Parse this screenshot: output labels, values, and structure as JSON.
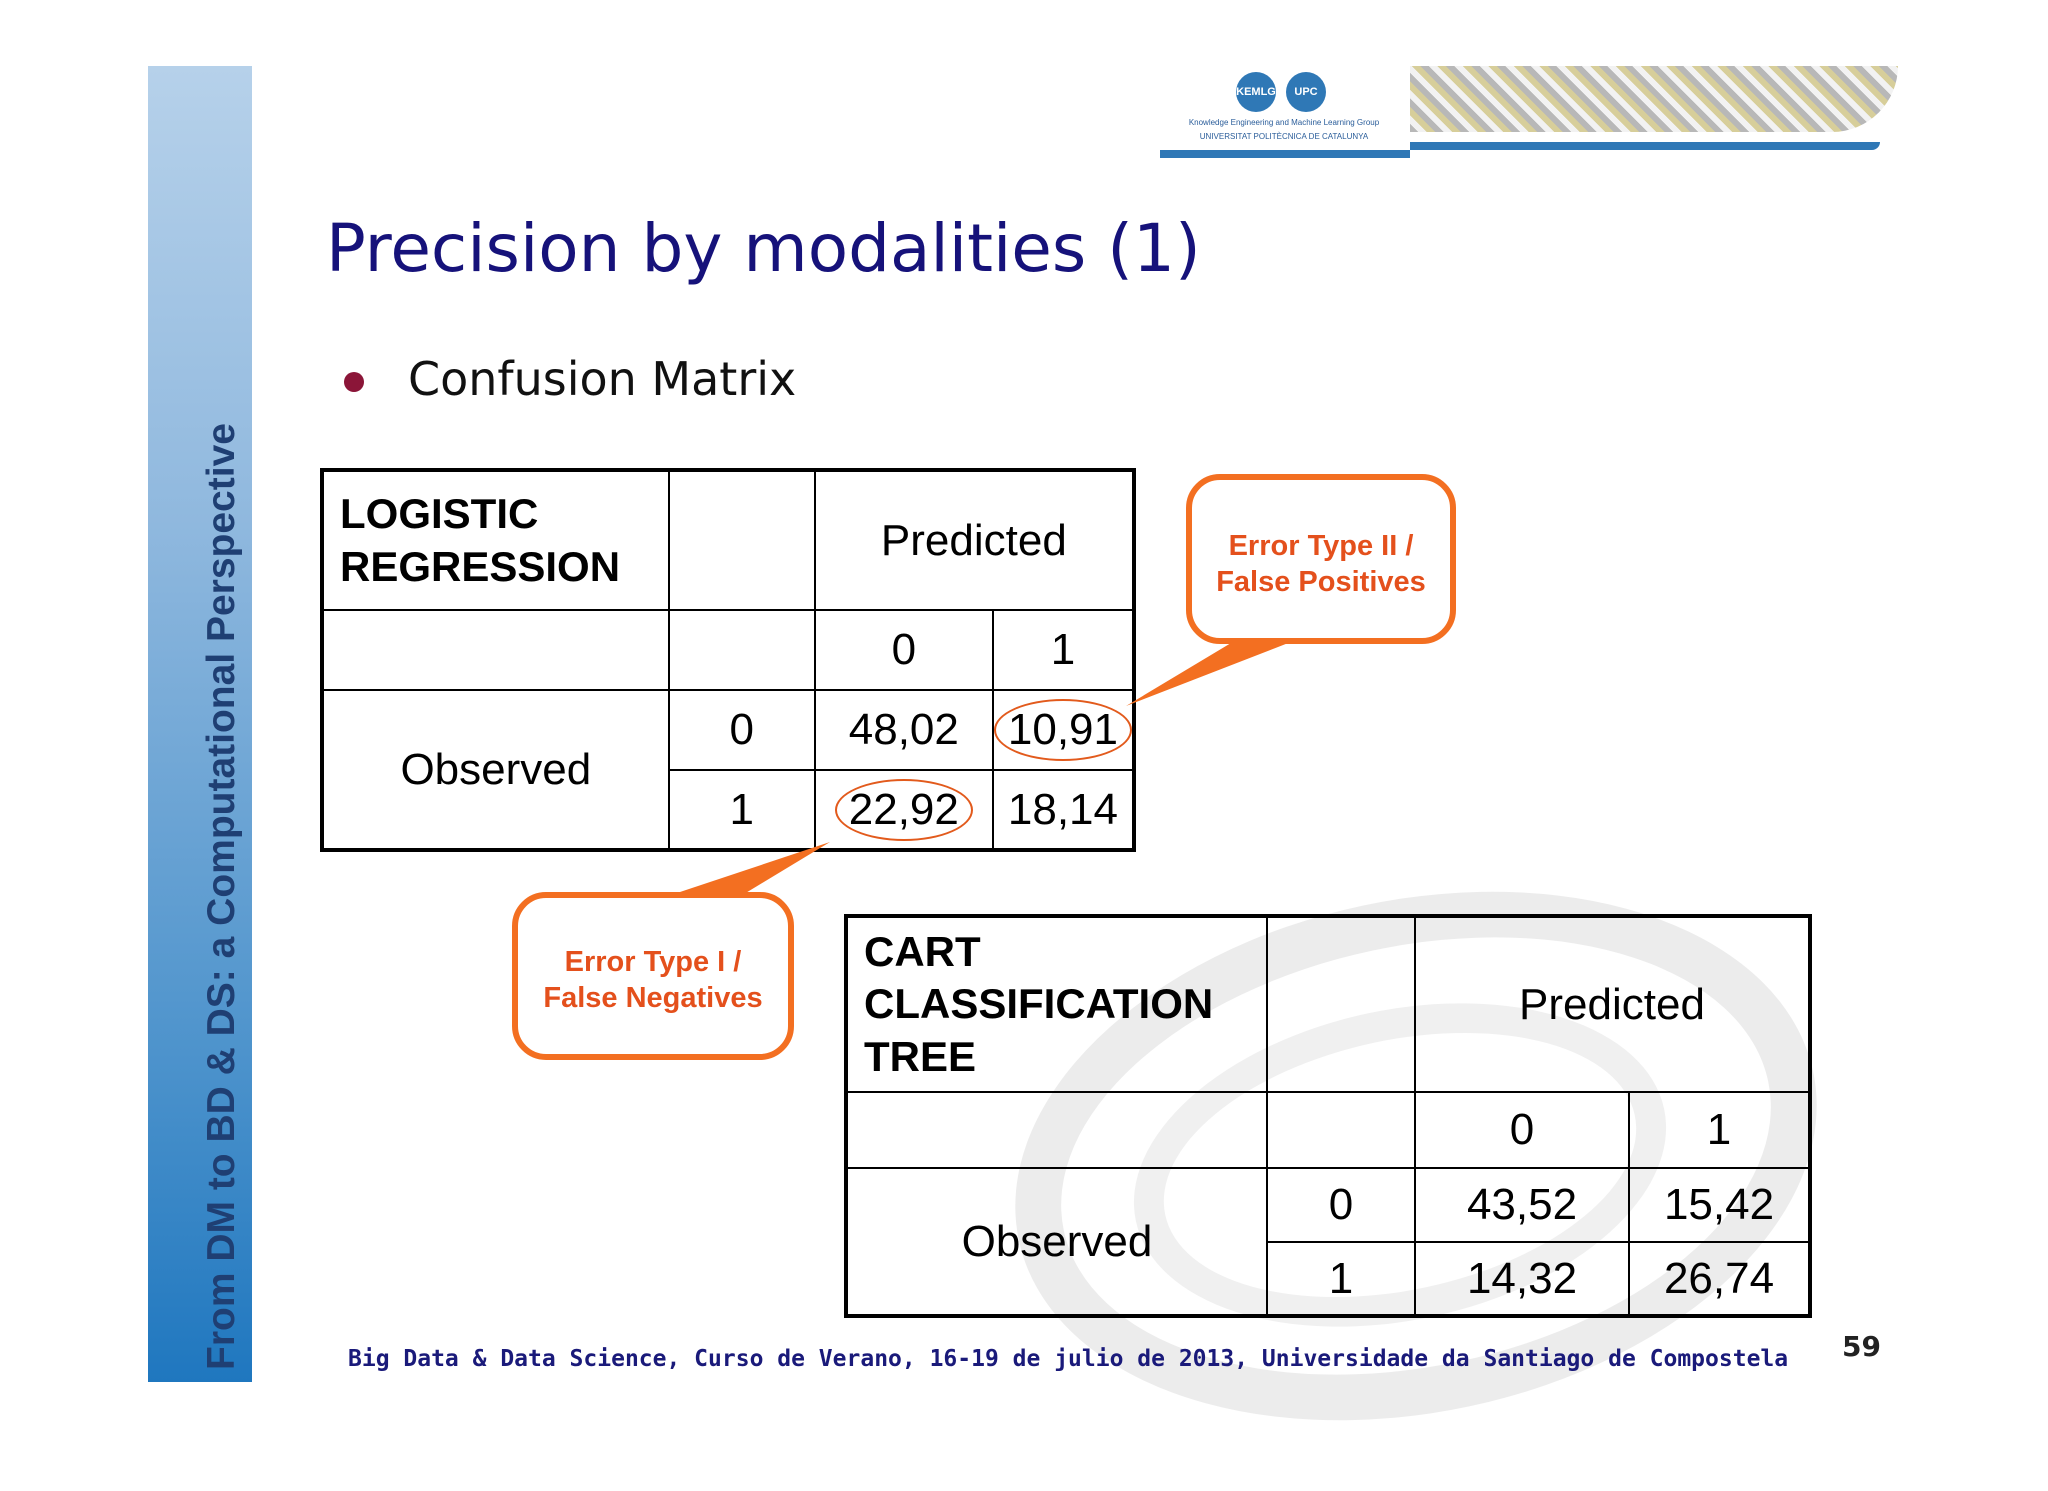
{
  "sidebar": {
    "text": "From DM to BD & DS: a Computational Perspective"
  },
  "logo": {
    "left_mark": "KEMLG",
    "right_mark": "UPC",
    "line1": "Knowledge Engineering and Machine Learning Group",
    "line2": "UNIVERSITAT POLITÈCNICA DE CATALUNYA"
  },
  "title": "Precision by modalities (1)",
  "bullet": "Confusion Matrix",
  "logistic": {
    "title_line1": "LOGISTIC",
    "title_line2": "REGRESSION",
    "predicted": "Predicted",
    "col0": "0",
    "col1": "1",
    "observed": "Observed",
    "row0": "0",
    "row1": "1",
    "cells": [
      [
        "48,02",
        "10,91"
      ],
      [
        "22,92",
        "18,14"
      ]
    ]
  },
  "cart": {
    "title_line1": "CART",
    "title_line2": "CLASSIFICATION",
    "title_line3": "TREE",
    "predicted": "Predicted",
    "col0": "0",
    "col1": "1",
    "observed": "Observed",
    "row0": "0",
    "row1": "1",
    "cells": [
      [
        "43,52",
        "15,42"
      ],
      [
        "14,32",
        "26,74"
      ]
    ]
  },
  "callout_type2": {
    "line1": "Error Type II /",
    "line2": "False Positives"
  },
  "callout_type1": {
    "line1": "Error Type I /",
    "line2": "False Negatives"
  },
  "footer": "Big Data & Data Science, Curso de Verano, 16-19 de julio de 2013, Universidade da Santiago de Compostela",
  "page_number": "59",
  "colors": {
    "accent_orange": "#f36f21",
    "title_blue": "#16127a",
    "bullet_red": "#8b1538"
  }
}
